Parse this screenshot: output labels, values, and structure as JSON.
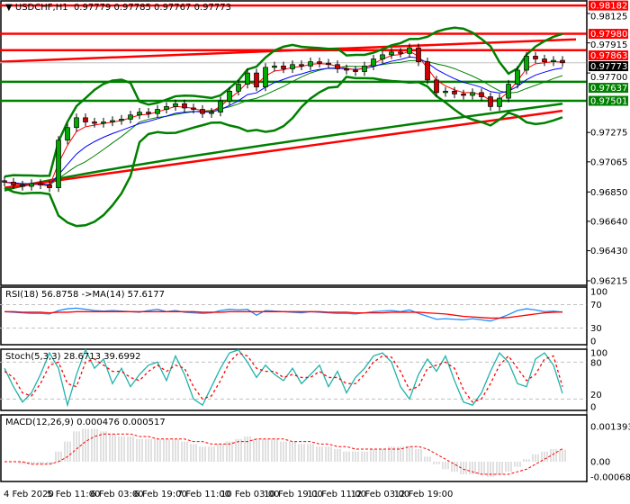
{
  "header": {
    "symbol": "USDCHF,H1",
    "open": "0.97779",
    "high": "0.97785",
    "low": "0.97767",
    "close": "0.97773"
  },
  "colors": {
    "up_candle": "#00aa00",
    "down_candle": "#cc0000",
    "resistance": "#ff0000",
    "support": "#008000",
    "fast_ma": "#ff0000",
    "slow_ma": "#0000ff",
    "bollinger": "#008000",
    "current_price": "#000000"
  },
  "chart_data": [
    {
      "type": "candlestick",
      "title": "USDCHF,H1",
      "ylim": [
        0.96215,
        0.98182
      ],
      "y_ticks": [
        "0.98125",
        "0.97915",
        "0.97700",
        "0.97275",
        "0.97065",
        "0.96850",
        "0.96640",
        "0.96430",
        "0.96215"
      ],
      "x_ticks": [
        "4 Feb 2020",
        "5 Feb 11:00",
        "6 Feb 03:00",
        "6 Feb 19:00",
        "7 Feb 11:00",
        "10 Feb 03:00",
        "10 Feb 19:00",
        "11 Feb 11:00",
        "12 Feb 03:00",
        "12 Feb 19:00"
      ],
      "close": [
        0.9692,
        0.969,
        0.9689,
        0.9691,
        0.969,
        0.9688,
        0.9722,
        0.9731,
        0.9738,
        0.9735,
        0.9734,
        0.9735,
        0.9736,
        0.9737,
        0.974,
        0.9742,
        0.9741,
        0.9744,
        0.9746,
        0.9748,
        0.9745,
        0.9744,
        0.9741,
        0.9742,
        0.975,
        0.9757,
        0.9762,
        0.977,
        0.976,
        0.9774,
        0.9775,
        0.9773,
        0.9776,
        0.9775,
        0.9778,
        0.9777,
        0.9776,
        0.9773,
        0.9772,
        0.9771,
        0.9775,
        0.978,
        0.9783,
        0.9785,
        0.9784,
        0.9788,
        0.9778,
        0.9765,
        0.9756,
        0.9757,
        0.9755,
        0.9754,
        0.9756,
        0.9753,
        0.9746,
        0.9752,
        0.9762,
        0.9772,
        0.9782,
        0.978,
        0.9778,
        0.9779,
        0.97773
      ],
      "levels": [
        {
          "price": "0.98182",
          "color": "#ff0000"
        },
        {
          "price": "0.97980",
          "color": "#ff0000"
        },
        {
          "price": "0.97863",
          "color": "#ff0000"
        },
        {
          "price": "0.97773",
          "color": "#000000",
          "current": true
        },
        {
          "price": "0.97637",
          "color": "#008000"
        },
        {
          "price": "0.97501",
          "color": "#008000"
        }
      ],
      "trendline_red": [
        0.9778,
        0.9794
      ],
      "long_ma_red": [
        0.9688,
        0.9743
      ],
      "long_ma_green": [
        0.9686,
        0.9748
      ]
    },
    {
      "type": "line",
      "title": "RSI(18) 56.8758  ->MA(14) 57.6177",
      "ylim": [
        0,
        100
      ],
      "y_ticks": [
        "100",
        "70",
        "30",
        "0"
      ],
      "series": [
        {
          "name": "RSI(18)",
          "color": "#1e90ff",
          "values": [
            58,
            57,
            56,
            55,
            55,
            54,
            60,
            63,
            64,
            62,
            60,
            59,
            60,
            59,
            58,
            57,
            60,
            62,
            58,
            60,
            57,
            56,
            55,
            56,
            60,
            62,
            61,
            62,
            52,
            60,
            59,
            58,
            57,
            56,
            58,
            57,
            56,
            55,
            55,
            54,
            56,
            58,
            59,
            60,
            58,
            61,
            55,
            50,
            45,
            46,
            45,
            44,
            46,
            44,
            42,
            47,
            53,
            60,
            63,
            61,
            58,
            59,
            57
          ]
        },
        {
          "name": "MA(14)",
          "color": "#ff0000",
          "values": [
            58,
            58,
            57,
            57,
            57,
            56,
            57,
            57,
            58,
            58,
            58,
            58,
            58,
            58,
            58,
            58,
            58,
            58,
            58,
            58,
            58,
            58,
            57,
            57,
            57,
            58,
            58,
            58,
            58,
            58,
            58,
            58,
            58,
            58,
            58,
            58,
            57,
            57,
            57,
            56,
            56,
            56,
            56,
            57,
            57,
            57,
            57,
            56,
            55,
            54,
            52,
            50,
            49,
            48,
            47,
            47,
            48,
            50,
            52,
            54,
            56,
            57,
            57.6
          ]
        }
      ]
    },
    {
      "type": "line",
      "title": "Stoch(5,3,3) 28.6713 39.6992",
      "ylim": [
        0,
        100
      ],
      "y_ticks": [
        "100",
        "80",
        "20",
        "0"
      ],
      "series": [
        {
          "name": "Main",
          "color": "#20b2aa",
          "values": [
            70,
            40,
            15,
            30,
            60,
            95,
            70,
            10,
            60,
            100,
            70,
            85,
            45,
            70,
            40,
            60,
            75,
            80,
            50,
            90,
            60,
            20,
            10,
            40,
            70,
            95,
            100,
            80,
            55,
            75,
            60,
            50,
            70,
            45,
            60,
            75,
            40,
            65,
            30,
            55,
            70,
            90,
            95,
            80,
            40,
            20,
            60,
            85,
            65,
            90,
            50,
            15,
            10,
            30,
            65,
            95,
            80,
            45,
            40,
            85,
            95,
            75,
            29
          ]
        },
        {
          "name": "Signal",
          "color": "#ff0000",
          "values": [
            65,
            55,
            30,
            25,
            45,
            75,
            80,
            45,
            40,
            80,
            85,
            75,
            65,
            65,
            55,
            50,
            65,
            75,
            65,
            75,
            70,
            40,
            20,
            25,
            50,
            80,
            95,
            90,
            70,
            65,
            65,
            55,
            60,
            55,
            55,
            65,
            55,
            55,
            45,
            45,
            60,
            80,
            90,
            88,
            65,
            35,
            40,
            70,
            75,
            80,
            70,
            35,
            15,
            20,
            45,
            75,
            90,
            70,
            50,
            60,
            85,
            90,
            40
          ]
        }
      ]
    },
    {
      "type": "bar",
      "title": "MACD(12,26,9) 0.000476 0.000517",
      "ylim": [
        -0.000683,
        0.001393
      ],
      "y_ticks": [
        "0.001393",
        "0.00",
        "-0.000683"
      ],
      "series": [
        {
          "name": "MACD",
          "color": "#c0c0c0",
          "values": [
            0.0,
            0.0,
            -0.0001,
            -0.0001,
            -0.0001,
            -0.0001,
            0.0004,
            0.0008,
            0.0012,
            0.0013,
            0.0013,
            0.0012,
            0.0011,
            0.001,
            0.001,
            0.0009,
            0.0009,
            0.0009,
            0.0009,
            0.0009,
            0.0008,
            0.0007,
            0.0006,
            0.0006,
            0.0007,
            0.0008,
            0.0009,
            0.001,
            0.0009,
            0.0009,
            0.0009,
            0.0008,
            0.0008,
            0.0007,
            0.0007,
            0.0006,
            0.0006,
            0.0005,
            0.0004,
            0.0004,
            0.0004,
            0.0005,
            0.0005,
            0.0006,
            0.0006,
            0.0006,
            0.0005,
            0.0002,
            -0.0001,
            -0.0003,
            -0.0004,
            -0.0005,
            -0.0005,
            -0.0005,
            -0.0006,
            -0.0005,
            -0.0004,
            -0.0002,
            0.0001,
            0.0003,
            0.0004,
            0.0005,
            0.000476
          ]
        },
        {
          "name": "Signal",
          "color": "#ff0000",
          "values": [
            0.0,
            0.0,
            0.0,
            -0.0001,
            -0.0001,
            -0.0001,
            0.0,
            0.0002,
            0.0005,
            0.0008,
            0.001,
            0.0011,
            0.0011,
            0.0011,
            0.0011,
            0.001,
            0.001,
            0.0009,
            0.0009,
            0.0009,
            0.0009,
            0.0008,
            0.0008,
            0.0007,
            0.0007,
            0.0007,
            0.0008,
            0.0008,
            0.0009,
            0.0009,
            0.0009,
            0.0009,
            0.0008,
            0.0008,
            0.0008,
            0.0007,
            0.0007,
            0.0006,
            0.0006,
            0.0005,
            0.0005,
            0.0005,
            0.0005,
            0.0005,
            0.0005,
            0.0006,
            0.0006,
            0.0005,
            0.0003,
            0.0001,
            -0.0001,
            -0.0003,
            -0.0004,
            -0.0005,
            -0.0005,
            -0.0005,
            -0.0005,
            -0.0004,
            -0.0003,
            -0.0001,
            0.0001,
            0.0003,
            0.000517
          ]
        }
      ]
    }
  ]
}
